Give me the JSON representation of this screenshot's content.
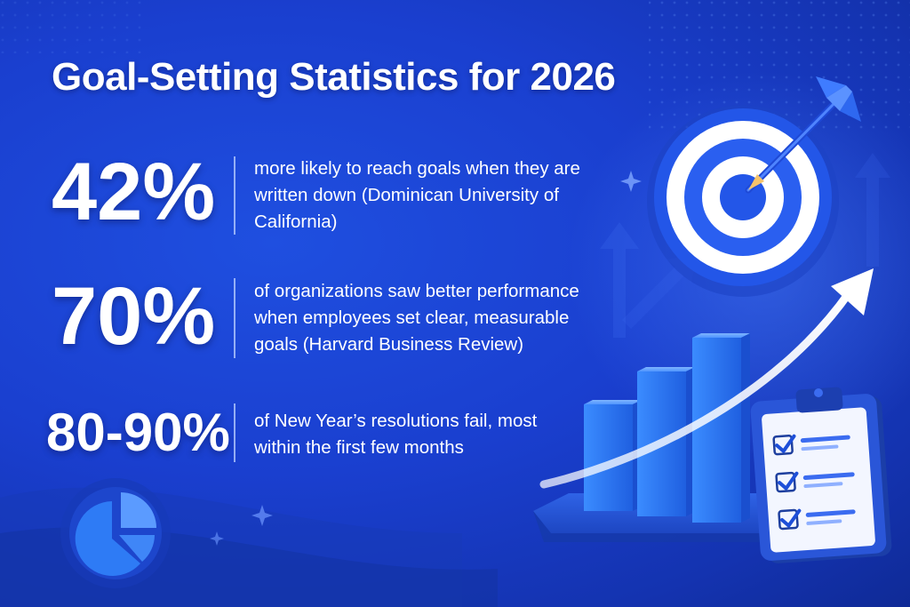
{
  "header": {
    "title": "Goal-Setting Statistics for 2026"
  },
  "stats": [
    {
      "value": "42%",
      "description": "more likely to reach goals when they are written down (Dominican University of California)"
    },
    {
      "value": "70%",
      "description": "of organizations saw better performance when employees set clear, measurable goals (Harvard Business Review)"
    },
    {
      "value": "80-90%",
      "description": "of New Year’s resolutions fail, most within the first few months"
    }
  ],
  "colors": {
    "background": "#1a3fcf",
    "text": "#ffffff",
    "bar": "#2f7df0",
    "target_ring": "#2355e6",
    "check": "#1e4fd8"
  },
  "icons": [
    "target-icon",
    "dart-icon",
    "bar-chart-icon",
    "rising-arrow-icon",
    "clipboard-checklist-icon",
    "pie-chart-icon",
    "sparkle-icon"
  ]
}
